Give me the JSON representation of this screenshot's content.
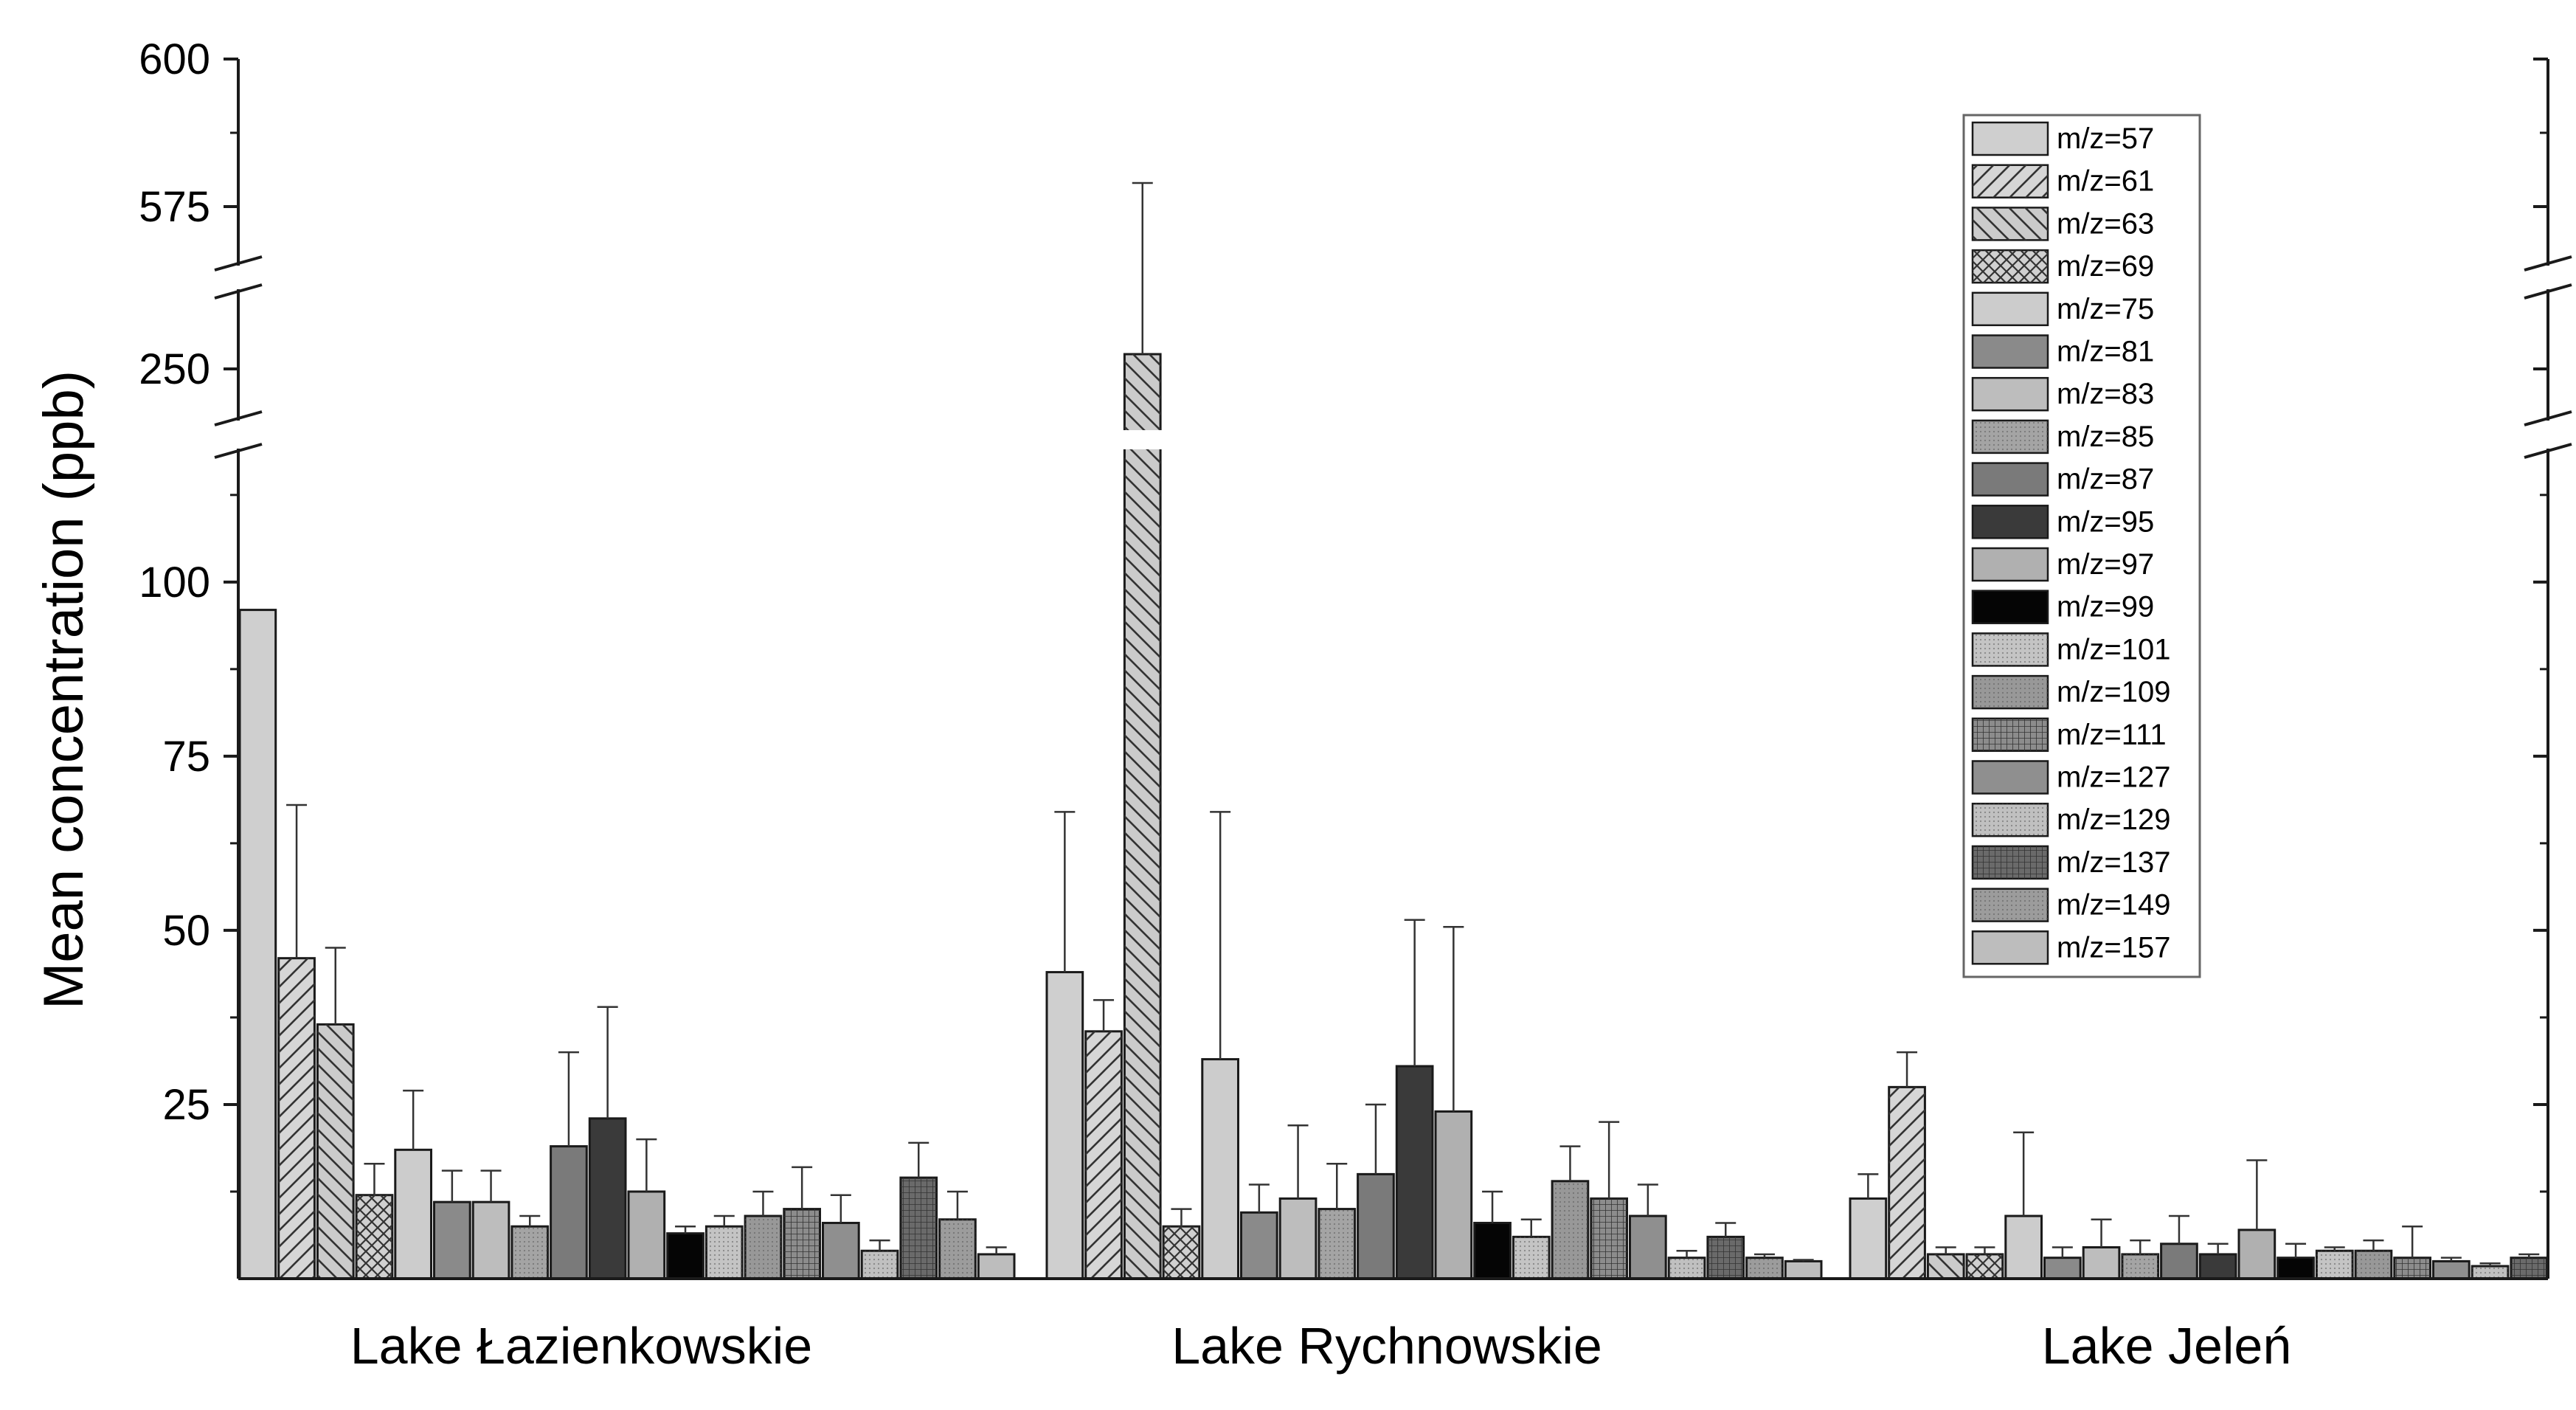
{
  "chart_data": {
    "type": "bar",
    "ylabel": "Mean concentration (ppb)",
    "xlabel": "",
    "categories": [
      "Lake Łazienkowskie",
      "Lake Rychnowskie",
      "Lake Jeleń"
    ],
    "y_axis": {
      "segments": [
        [
          0,
          120
        ],
        [
          240,
          260
        ],
        [
          570,
          600
        ]
      ],
      "tick_labels": [
        "25",
        "50",
        "75",
        "100",
        "250",
        "575",
        "600"
      ]
    },
    "legend_position": "top-right",
    "series": [
      {
        "name": "m/z=57",
        "values": [
          96,
          44,
          11.5
        ],
        "errors": [
          null,
          67,
          15
        ],
        "fill": "#cfcfcf",
        "pattern": "solid"
      },
      {
        "name": "m/z=61",
        "values": [
          46,
          35.5,
          27.5
        ],
        "errors": [
          68,
          40,
          32.5
        ],
        "fill": "#d6d6d6",
        "pattern": "diag-fwd"
      },
      {
        "name": "m/z=63",
        "values": [
          36.5,
          252,
          3.5
        ],
        "errors": [
          47.5,
          579,
          4.5
        ],
        "fill": "#cbcbcb",
        "pattern": "diag-back"
      },
      {
        "name": "m/z=69",
        "values": [
          12,
          7.5,
          3.5
        ],
        "errors": [
          16.5,
          10,
          4.5
        ],
        "fill": "#d0d0d0",
        "pattern": "cross"
      },
      {
        "name": "m/z=75",
        "values": [
          18.5,
          31.5,
          9
        ],
        "errors": [
          27,
          67,
          21
        ],
        "fill": "#cccccc",
        "pattern": "solid"
      },
      {
        "name": "m/z=81",
        "values": [
          11,
          9.5,
          3
        ],
        "errors": [
          15.5,
          13.5,
          4.5
        ],
        "fill": "#8a8a8a",
        "pattern": "solid"
      },
      {
        "name": "m/z=83",
        "values": [
          11,
          11.5,
          4.5
        ],
        "errors": [
          15.5,
          22,
          8.5
        ],
        "fill": "#bdbdbd",
        "pattern": "solid"
      },
      {
        "name": "m/z=85",
        "values": [
          7.5,
          10,
          3.5
        ],
        "errors": [
          9,
          16.5,
          5.5
        ],
        "fill": "#a4a4a4",
        "pattern": "dots"
      },
      {
        "name": "m/z=87",
        "values": [
          19,
          15,
          5
        ],
        "errors": [
          32.5,
          25,
          9
        ],
        "fill": "#7a7a7a",
        "pattern": "solid"
      },
      {
        "name": "m/z=95",
        "values": [
          23,
          30.5,
          3.5
        ],
        "errors": [
          39,
          51.5,
          5
        ],
        "fill": "#3a3a3a",
        "pattern": "solid"
      },
      {
        "name": "m/z=97",
        "values": [
          12.5,
          24,
          7
        ],
        "errors": [
          20,
          50.5,
          17
        ],
        "fill": "#b0b0b0",
        "pattern": "solid"
      },
      {
        "name": "m/z=99",
        "values": [
          6.5,
          8,
          3
        ],
        "errors": [
          7.5,
          12.5,
          5
        ],
        "fill": "#050505",
        "pattern": "solid"
      },
      {
        "name": "m/z=101",
        "values": [
          7.5,
          6,
          4
        ],
        "errors": [
          9,
          8.5,
          4.5
        ],
        "fill": "#c4c4c4",
        "pattern": "dots"
      },
      {
        "name": "m/z=109",
        "values": [
          9,
          14,
          4
        ],
        "errors": [
          12.5,
          19,
          5.5
        ],
        "fill": "#989898",
        "pattern": "dots"
      },
      {
        "name": "m/z=111",
        "values": [
          10,
          11.5,
          3
        ],
        "errors": [
          16,
          22.5,
          7.5
        ],
        "fill": "#8c8c8c",
        "pattern": "grid"
      },
      {
        "name": "m/z=127",
        "values": [
          8,
          9,
          2.5
        ],
        "errors": [
          12,
          13.5,
          3
        ],
        "fill": "#8f8f8f",
        "pattern": "solid"
      },
      {
        "name": "m/z=129",
        "values": [
          4,
          3,
          1.8
        ],
        "errors": [
          5.5,
          4,
          2.2
        ],
        "fill": "#c0c0c0",
        "pattern": "dots"
      },
      {
        "name": "m/z=137",
        "values": [
          14.5,
          6,
          3
        ],
        "errors": [
          19.5,
          8,
          3.5
        ],
        "fill": "#6a6a6a",
        "pattern": "grid"
      },
      {
        "name": "m/z=149",
        "values": [
          8.5,
          3,
          0
        ],
        "errors": [
          12.5,
          3.5,
          null
        ],
        "fill": "#9c9c9c",
        "pattern": "dots"
      },
      {
        "name": "m/z=157",
        "values": [
          3.5,
          2.5,
          3
        ],
        "errors": [
          4.5,
          2.7,
          3.5
        ],
        "fill": "#bdbdbd",
        "pattern": "solid"
      }
    ]
  }
}
